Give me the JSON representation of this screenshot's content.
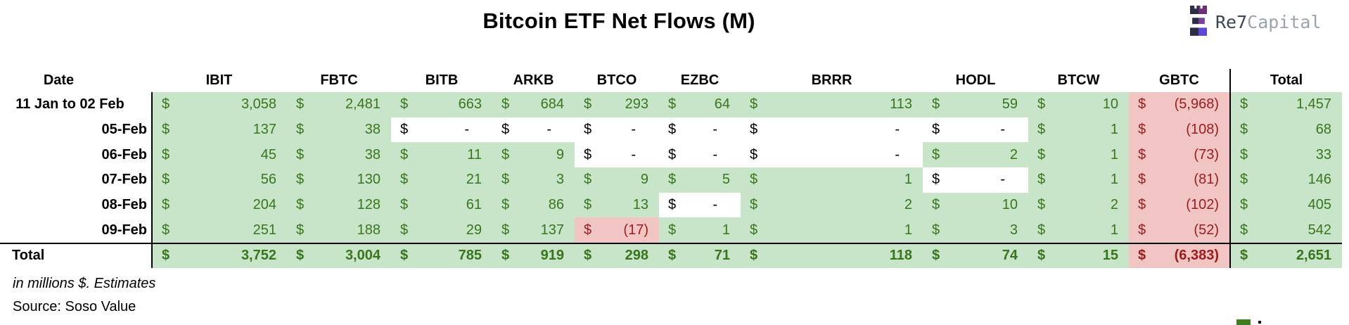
{
  "title": "Bitcoin ETF Net Flows (M)",
  "logo": {
    "text_primary": "Re7",
    "text_secondary": "Capital"
  },
  "table": {
    "currency_symbol": "$",
    "header": [
      "Date",
      "IBIT",
      "FBTC",
      "BITB",
      "ARKB",
      "BTCO",
      "EZBC",
      "BRRR",
      "HODL",
      "BTCW",
      "GBTC",
      "Total"
    ],
    "rows": [
      {
        "date": "11 Jan to 02 Feb",
        "values": [
          "3,058",
          "2,481",
          "663",
          "684",
          "293",
          "64",
          "113",
          "59",
          "10",
          "(5,968)",
          "1,457"
        ]
      },
      {
        "date": "05-Feb",
        "values": [
          "137",
          "38",
          "-",
          "-",
          "-",
          "-",
          "-",
          "-",
          "1",
          "(108)",
          "68"
        ]
      },
      {
        "date": "06-Feb",
        "values": [
          "45",
          "38",
          "11",
          "9",
          "-",
          "-",
          "-",
          "2",
          "1",
          "(73)",
          "33"
        ]
      },
      {
        "date": "07-Feb",
        "values": [
          "56",
          "130",
          "21",
          "3",
          "9",
          "5",
          "1",
          "-",
          "1",
          "(81)",
          "146"
        ]
      },
      {
        "date": "08-Feb",
        "values": [
          "204",
          "128",
          "61",
          "86",
          "13",
          "-",
          "2",
          "10",
          "2",
          "(102)",
          "405"
        ]
      },
      {
        "date": "09-Feb",
        "values": [
          "251",
          "188",
          "29",
          "137",
          "(17)",
          "1",
          "1",
          "3",
          "1",
          "(52)",
          "542"
        ]
      }
    ],
    "total_row": {
      "date": "Total",
      "values": [
        "3,752",
        "3,004",
        "785",
        "919",
        "298",
        "71",
        "118",
        "74",
        "15",
        "(6,383)",
        "2,651"
      ]
    }
  },
  "footnotes": {
    "units": "in millions $. Estimates",
    "source": "Source: Soso Value"
  },
  "colors": {
    "positive_bg": "#c9e5c9",
    "positive_text": "#38761d",
    "negative_bg": "#f2c5c5",
    "negative_text": "#9c1c1c",
    "empty_bg": "#ffffff",
    "text": "#000000",
    "logo_navy": "#2a2f45",
    "logo_plum": "#6b3077",
    "logo_purple": "#7a3f98",
    "logo_indigo": "#5b48d8",
    "logo_text_primary": "#3b4357",
    "logo_text_secondary": "#9aa3ab"
  },
  "chart_data": {
    "type": "table",
    "title": "Bitcoin ETF Net Flows (M)",
    "units": "millions USD",
    "categories": [
      "11 Jan to 02 Feb",
      "05-Feb",
      "06-Feb",
      "07-Feb",
      "08-Feb",
      "09-Feb"
    ],
    "series": [
      {
        "name": "IBIT",
        "values": [
          3058,
          137,
          45,
          56,
          204,
          251
        ],
        "total": 3752
      },
      {
        "name": "FBTC",
        "values": [
          2481,
          38,
          38,
          130,
          128,
          188
        ],
        "total": 3004
      },
      {
        "name": "BITB",
        "values": [
          663,
          null,
          11,
          21,
          61,
          29
        ],
        "total": 785
      },
      {
        "name": "ARKB",
        "values": [
          684,
          null,
          9,
          3,
          86,
          137
        ],
        "total": 919
      },
      {
        "name": "BTCO",
        "values": [
          293,
          null,
          null,
          9,
          13,
          -17
        ],
        "total": 298
      },
      {
        "name": "EZBC",
        "values": [
          64,
          null,
          null,
          5,
          null,
          1
        ],
        "total": 71
      },
      {
        "name": "BRRR",
        "values": [
          113,
          null,
          null,
          1,
          2,
          1
        ],
        "total": 118
      },
      {
        "name": "HODL",
        "values": [
          59,
          null,
          2,
          null,
          10,
          3
        ],
        "total": 74
      },
      {
        "name": "BTCW",
        "values": [
          10,
          1,
          1,
          1,
          2,
          1
        ],
        "total": 15
      },
      {
        "name": "GBTC",
        "values": [
          -5968,
          -108,
          -73,
          -81,
          -102,
          -52
        ],
        "total": -6383
      },
      {
        "name": "Total",
        "values": [
          1457,
          68,
          33,
          146,
          405,
          542
        ],
        "total": 2651
      }
    ]
  }
}
